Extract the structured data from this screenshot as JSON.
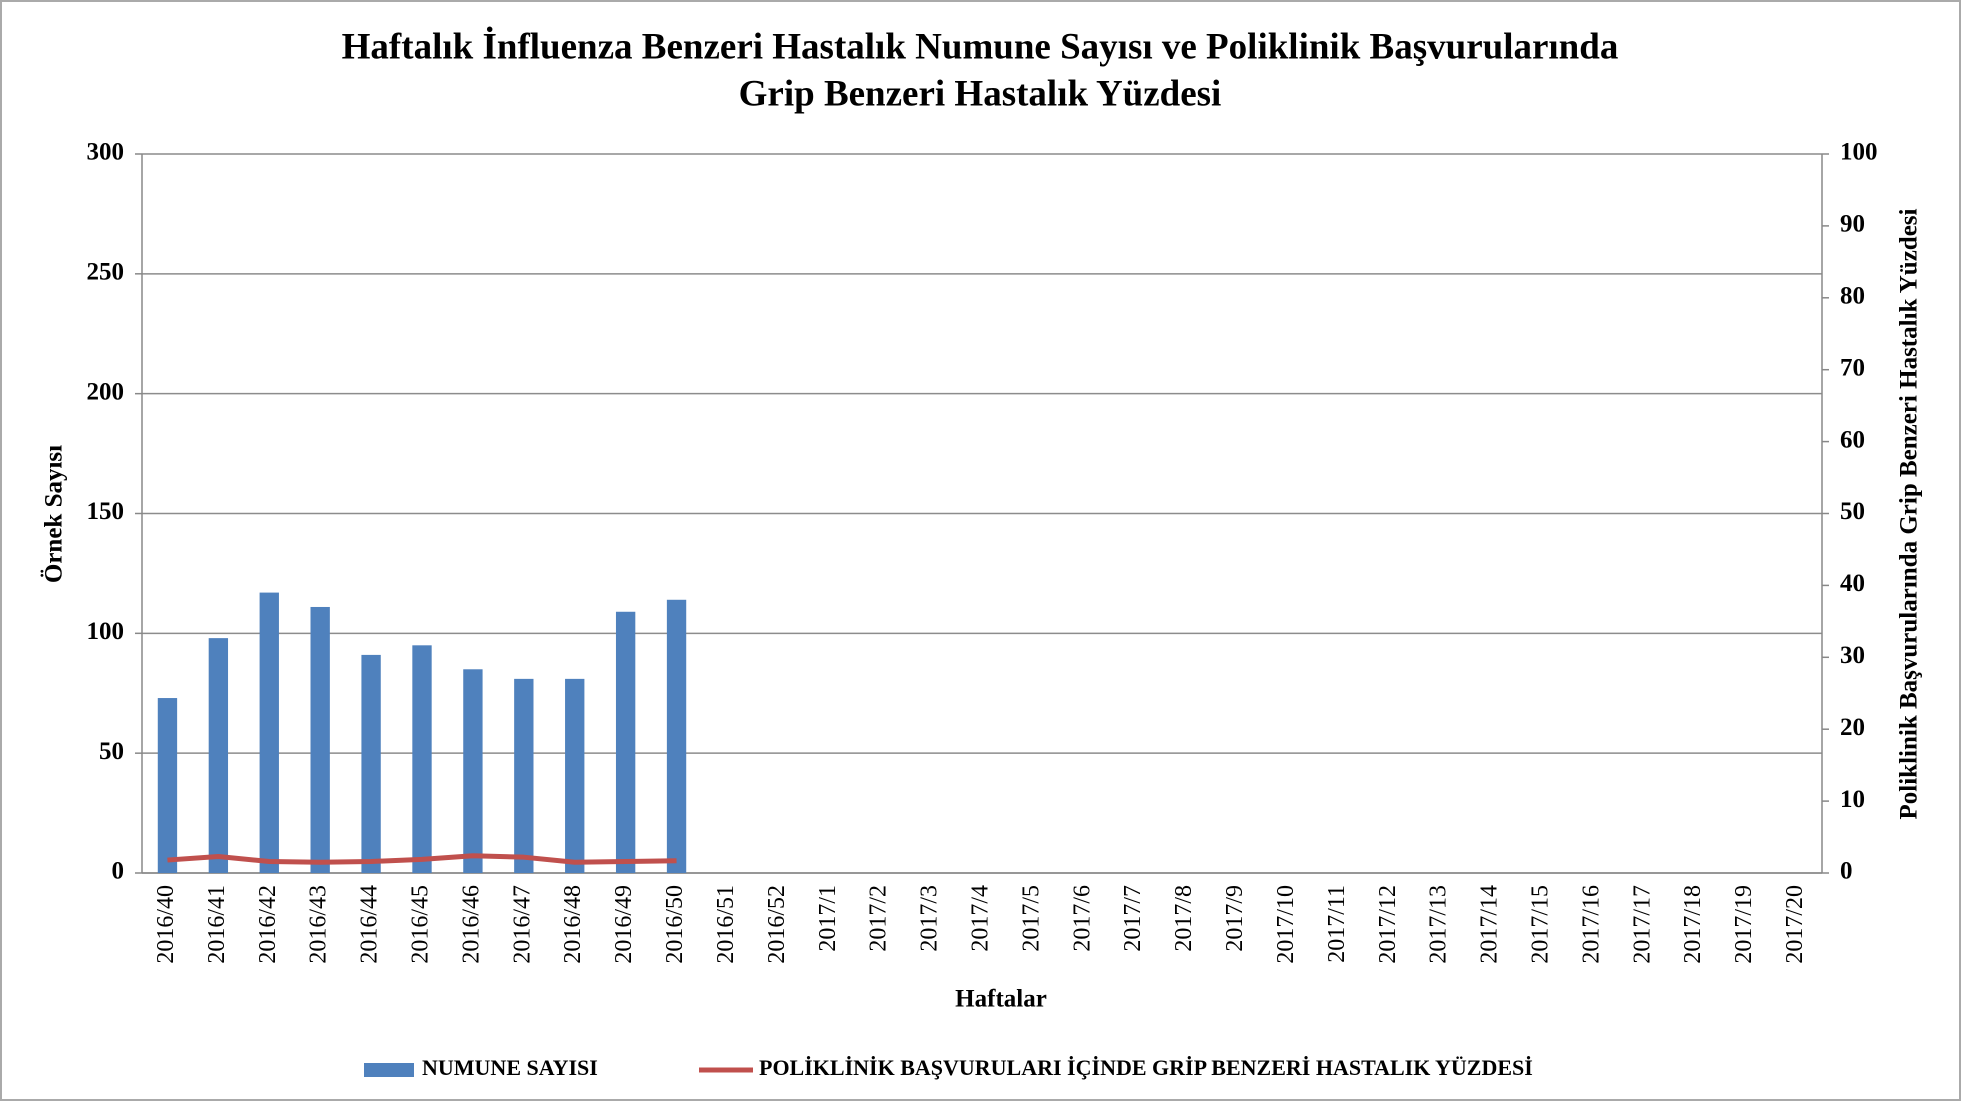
{
  "chart_data": {
    "type": "bar",
    "title": [
      "Haftalık İnfluenza Benzeri Hastalık Numune Sayısı ve Poliklinik Başvurularında",
      "Grip Benzeri Hastalık Yüzdesi"
    ],
    "xlabel": "Haftalar",
    "ylabel": "Örnek Sayısı",
    "y2label": "Poliklinik Başvurularında Grip Benzeri Hastalık Yüzdesi",
    "categories": [
      "2016/40",
      "2016/41",
      "2016/42",
      "2016/43",
      "2016/44",
      "2016/45",
      "2016/46",
      "2016/47",
      "2016/48",
      "2016/49",
      "2016/50",
      "2016/51",
      "2016/52",
      "2017/1",
      "2017/2",
      "2017/3",
      "2017/4",
      "2017/5",
      "2017/6",
      "2017/7",
      "2017/8",
      "2017/9",
      "2017/10",
      "2017/11",
      "2017/12",
      "2017/13",
      "2017/14",
      "2017/15",
      "2017/16",
      "2017/17",
      "2017/18",
      "2017/19",
      "2017/20"
    ],
    "series": [
      {
        "name": "NUMUNE SAYISI",
        "type": "bar",
        "color": "#4f81bd",
        "values": [
          73,
          98,
          117,
          111,
          91,
          95,
          85,
          81,
          81,
          109,
          114,
          null,
          null,
          null,
          null,
          null,
          null,
          null,
          null,
          null,
          null,
          null,
          null,
          null,
          null,
          null,
          null,
          null,
          null,
          null,
          null,
          null,
          null
        ]
      },
      {
        "name": "POLİKLİNİK BAŞVURULARI İÇİNDE GRİP BENZERİ HASTALIK YÜZDESİ",
        "type": "line",
        "axis": "y2",
        "color": "#c0504d",
        "values": [
          1.8,
          2.3,
          1.6,
          1.5,
          1.6,
          1.9,
          2.4,
          2.2,
          1.5,
          1.6,
          1.7,
          null,
          null,
          null,
          null,
          null,
          null,
          null,
          null,
          null,
          null,
          null,
          null,
          null,
          null,
          null,
          null,
          null,
          null,
          null,
          null,
          null,
          null
        ]
      }
    ],
    "ylim": [
      0,
      300
    ],
    "yticks": [
      0,
      50,
      100,
      150,
      200,
      250,
      300
    ],
    "y2lim": [
      0,
      100
    ],
    "y2ticks": [
      0,
      10,
      20,
      30,
      40,
      50,
      60,
      70,
      80,
      90,
      100
    ],
    "grid": true,
    "legend": "bottom"
  }
}
